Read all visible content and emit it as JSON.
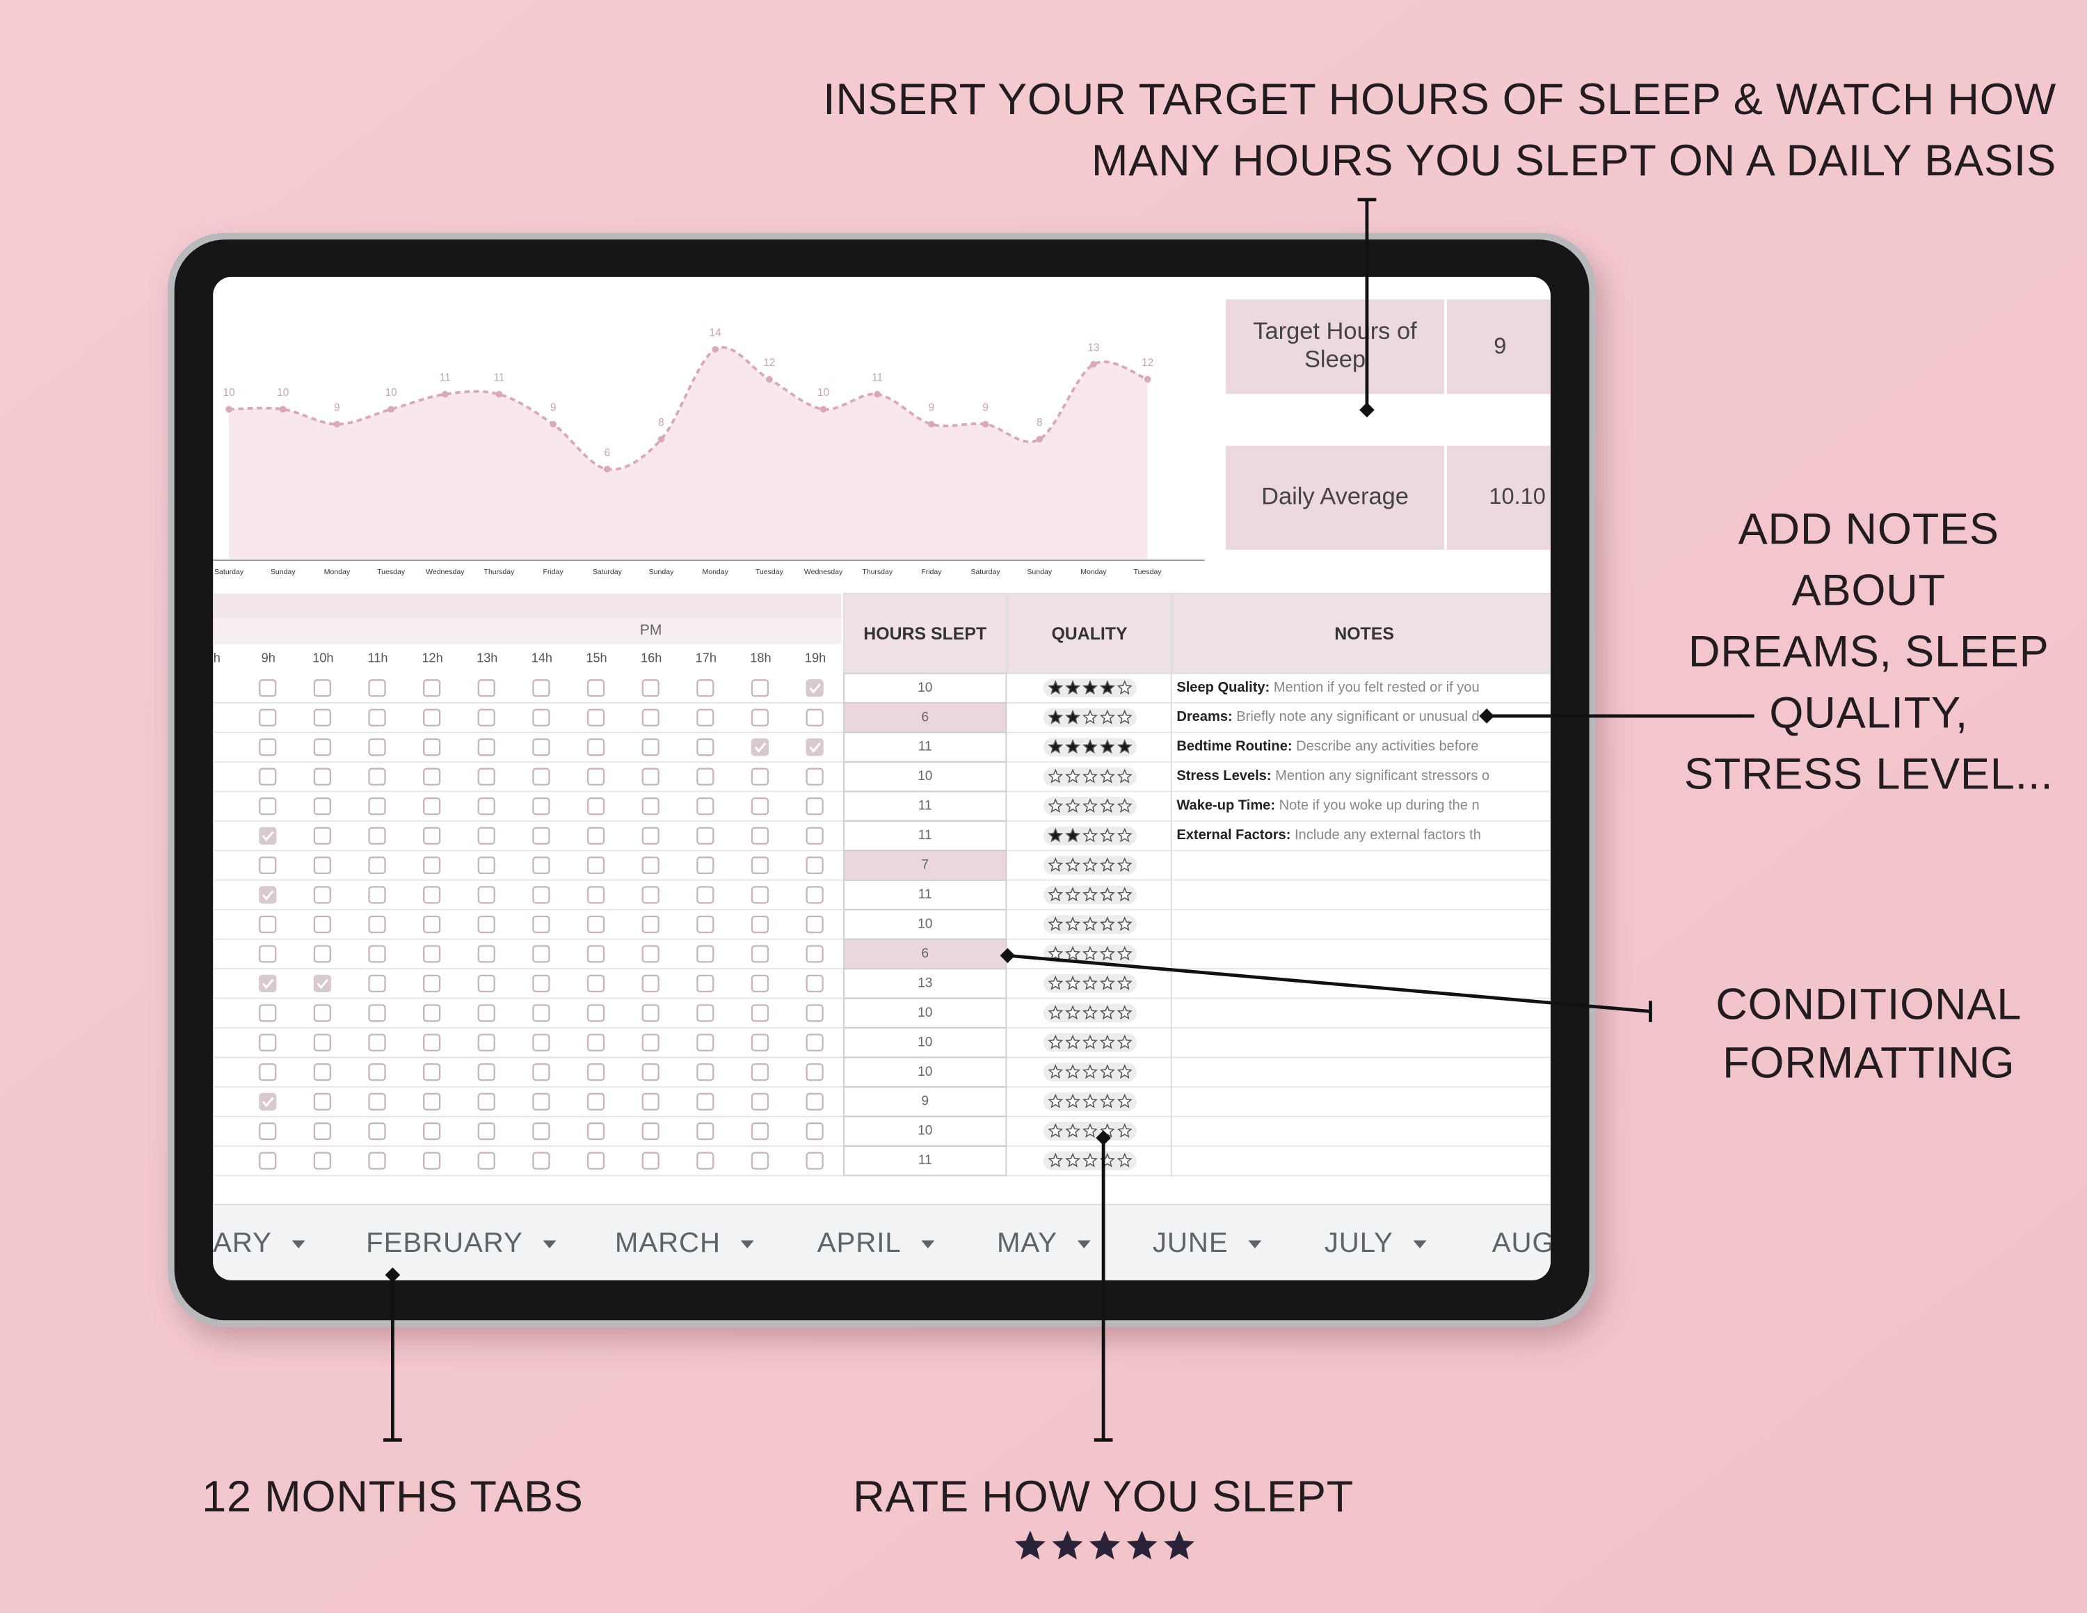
{
  "annotations": {
    "target": [
      "INSERT YOUR TARGET HOURS OF SLEEP & WATCH HOW",
      "MANY HOURS YOU SLEPT ON A DAILY BASIS"
    ],
    "notes": [
      "ADD NOTES",
      "ABOUT",
      "DREAMS, SLEEP",
      "QUALITY,",
      "STRESS LEVEL..."
    ],
    "formatting": [
      "CONDITIONAL",
      "FORMATTING"
    ],
    "tabs": "12 MONTHS TABS",
    "rating": "RATE HOW YOU SLEPT"
  },
  "sheet": {
    "chart": {
      "type": "area",
      "categories": [
        "Saturday",
        "Sunday",
        "Monday",
        "Tuesday",
        "Wednesday",
        "Thursday",
        "Friday",
        "Saturday",
        "Sunday",
        "Monday",
        "Tuesday",
        "Wednesday",
        "Thursday",
        "Friday",
        "Saturday",
        "Sunday",
        "Monday",
        "Tuesday"
      ],
      "values": [
        10,
        10,
        9,
        10,
        11,
        11,
        9,
        6,
        8,
        14,
        12,
        10,
        11,
        9,
        9,
        8,
        13,
        12
      ],
      "ylim": [
        0,
        16
      ],
      "color": "#d9a9b8"
    },
    "target_label": [
      "Target Hours of",
      "Sleep"
    ],
    "target_hours": 9,
    "average_label": "Daily Average",
    "daily_average": "10.10",
    "period_label": "PM",
    "hour_labels": [
      "h",
      "9h",
      "10h",
      "11h",
      "12h",
      "13h",
      "14h",
      "15h",
      "16h",
      "17h",
      "18h",
      "19h"
    ],
    "columns": [
      "HOURS SLEPT",
      "QUALITY",
      "NOTES"
    ],
    "rows": [
      {
        "hours": 10,
        "quality": 4,
        "checked": [
          false,
          false,
          false,
          false,
          false,
          false,
          false,
          false,
          false,
          false,
          true
        ],
        "note_title": "Sleep Quality:",
        "note": " Mention if you felt rested or if you"
      },
      {
        "hours": 6,
        "quality": 2,
        "checked": [
          false,
          false,
          false,
          false,
          false,
          false,
          false,
          false,
          false,
          false,
          false
        ],
        "note_title": "Dreams:",
        "note": " Briefly note any significant or unusual d"
      },
      {
        "hours": 11,
        "quality": 5,
        "checked": [
          false,
          false,
          false,
          false,
          false,
          false,
          false,
          false,
          false,
          true,
          true
        ],
        "note_title": "Bedtime Routine:",
        "note": " Describe any activities before"
      },
      {
        "hours": 10,
        "quality": 0,
        "checked": [
          false,
          false,
          false,
          false,
          false,
          false,
          false,
          false,
          false,
          false,
          false
        ],
        "note_title": "Stress Levels:",
        "note": " Mention any significant stressors o"
      },
      {
        "hours": 11,
        "quality": 0,
        "checked": [
          false,
          false,
          false,
          false,
          false,
          false,
          false,
          false,
          false,
          false,
          false
        ],
        "note_title": "Wake-up Time:",
        "note": " Note if you woke up during the n"
      },
      {
        "hours": 11,
        "quality": 2,
        "checked": [
          true,
          false,
          false,
          false,
          false,
          false,
          false,
          false,
          false,
          false,
          false
        ],
        "note_title": "External Factors:",
        "note": " Include any external factors th"
      },
      {
        "hours": 7,
        "quality": 0,
        "checked": [
          false,
          false,
          false,
          false,
          false,
          false,
          false,
          false,
          false,
          false,
          false
        ]
      },
      {
        "hours": 11,
        "quality": 0,
        "checked": [
          true,
          false,
          false,
          false,
          false,
          false,
          false,
          false,
          false,
          false,
          false
        ]
      },
      {
        "hours": 10,
        "quality": 0,
        "checked": [
          false,
          false,
          false,
          false,
          false,
          false,
          false,
          false,
          false,
          false,
          false
        ]
      },
      {
        "hours": 6,
        "quality": 0,
        "checked": [
          false,
          false,
          false,
          false,
          false,
          false,
          false,
          false,
          false,
          false,
          false
        ]
      },
      {
        "hours": 13,
        "quality": 0,
        "checked": [
          true,
          true,
          false,
          false,
          false,
          false,
          false,
          false,
          false,
          false,
          false
        ]
      },
      {
        "hours": 10,
        "quality": 0,
        "checked": [
          false,
          false,
          false,
          false,
          false,
          false,
          false,
          false,
          false,
          false,
          false
        ]
      },
      {
        "hours": 10,
        "quality": 0,
        "checked": [
          false,
          false,
          false,
          false,
          false,
          false,
          false,
          false,
          false,
          false,
          false
        ]
      },
      {
        "hours": 10,
        "quality": 0,
        "checked": [
          false,
          false,
          false,
          false,
          false,
          false,
          false,
          false,
          false,
          false,
          false
        ]
      },
      {
        "hours": 9,
        "quality": 0,
        "checked": [
          true,
          false,
          false,
          false,
          false,
          false,
          false,
          false,
          false,
          false,
          false
        ]
      },
      {
        "hours": 10,
        "quality": 0,
        "checked": [
          false,
          false,
          false,
          false,
          false,
          false,
          false,
          false,
          false,
          false,
          false
        ]
      },
      {
        "hours": 11,
        "quality": 0,
        "checked": [
          false,
          false,
          false,
          false,
          false,
          false,
          false,
          false,
          false,
          false,
          false
        ]
      }
    ]
  },
  "tabs": [
    "ARY",
    "FEBRUARY",
    "MARCH",
    "APRIL",
    "MAY",
    "JUNE",
    "JULY",
    "AUG"
  ]
}
